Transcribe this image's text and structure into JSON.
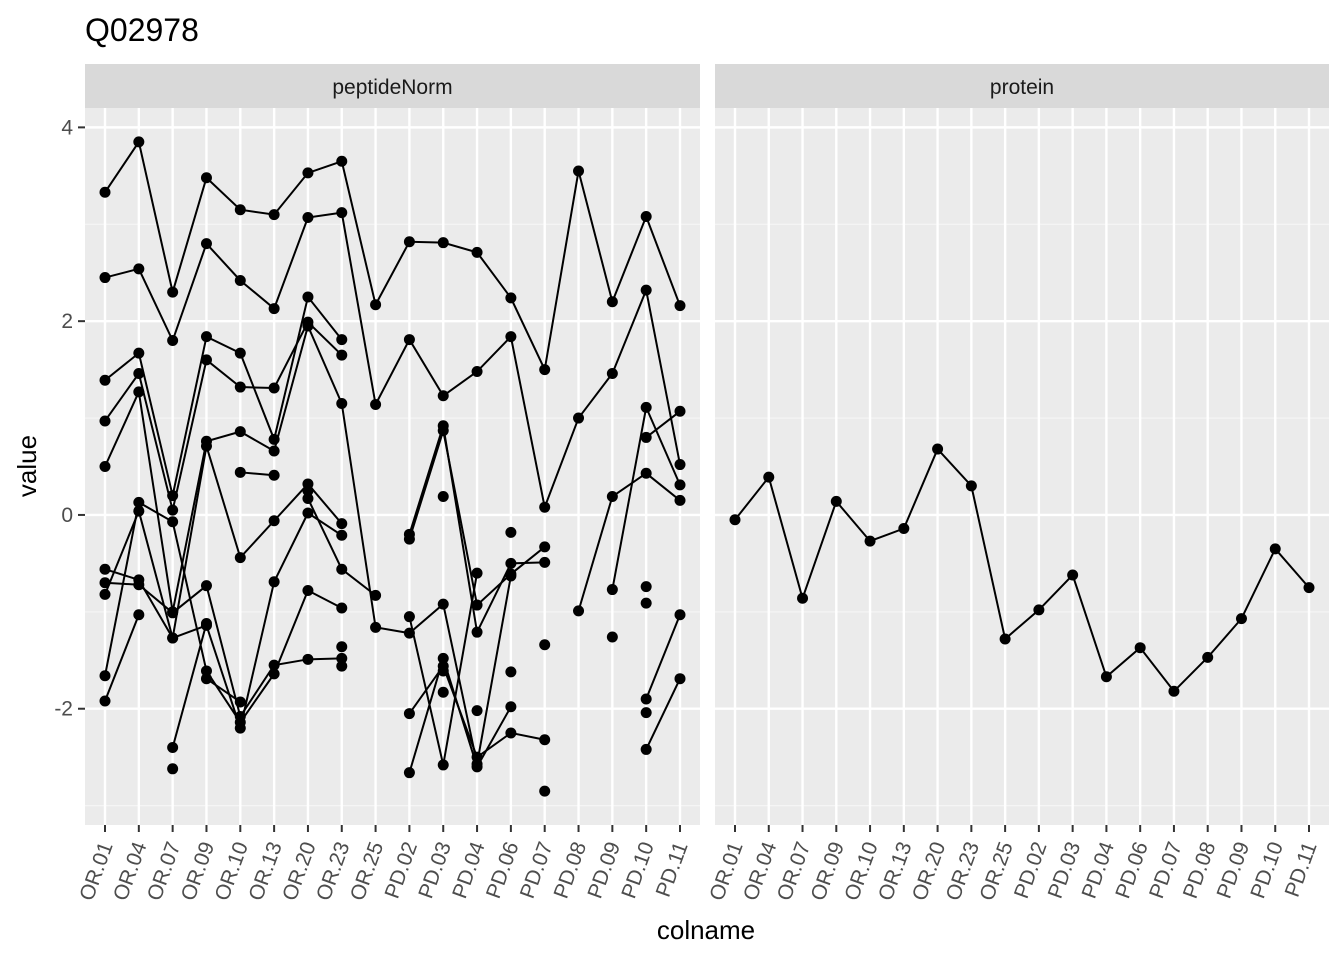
{
  "chart_data": {
    "type": "line",
    "title": "Q02978",
    "xlabel": "colname",
    "ylabel": "value",
    "ylim": [
      -3.2,
      4.2
    ],
    "y_ticks": [
      "-2",
      "0",
      "2",
      "4"
    ],
    "grid": true,
    "legend": "none",
    "categories": [
      "OR.01",
      "OR.04",
      "OR.07",
      "OR.09",
      "OR.10",
      "OR.13",
      "OR.20",
      "OR.23",
      "OR.25",
      "PD.02",
      "PD.03",
      "PD.04",
      "PD.06",
      "PD.07",
      "PD.08",
      "PD.09",
      "PD.10",
      "PD.11"
    ],
    "panels": [
      {
        "strip": "peptideNorm",
        "series": [
          {
            "values": [
              3.33,
              3.85,
              2.3,
              3.48,
              3.15,
              3.1,
              3.53,
              3.65,
              2.17,
              2.82,
              2.81,
              2.71,
              2.24,
              1.5,
              3.55,
              2.2,
              3.08,
              2.16
            ]
          },
          {
            "values": [
              2.45,
              2.54,
              1.8,
              2.8,
              2.42,
              2.13,
              3.07,
              3.12,
              1.14,
              1.81,
              1.23,
              1.48,
              1.84,
              0.08,
              1.0,
              1.46,
              2.32,
              0.52
            ]
          },
          {
            "values": [
              1.39,
              1.67,
              0.2,
              1.84,
              1.67,
              0.78,
              2.25,
              1.81
            ]
          },
          {
            "values": [
              0.97,
              1.46,
              0.05,
              1.6,
              1.32,
              1.31,
              1.99,
              1.65
            ]
          },
          {
            "values": [
              0.5,
              1.27,
              -1.0,
              0.76,
              0.86,
              0.66,
              1.95,
              1.15,
              -1.16,
              -1.22,
              -0.92,
              -2.57,
              -0.63
            ]
          },
          {
            "values": [
              -0.56,
              -0.67,
              -1.27,
              0.71,
              -0.44,
              -0.06,
              0.32,
              -0.09
            ]
          },
          {
            "values": [
              -0.7,
              -0.72,
              -1.01,
              -0.73,
              -2.08,
              -1.55,
              -1.49,
              -1.48
            ]
          },
          {
            "values": [
              -0.82,
              0.04,
              -1.27,
              -1.14,
              -2.2,
              -0.69,
              0.02,
              -0.21
            ]
          },
          {
            "values": [
              -1.66,
              0.13,
              -0.07,
              -1.61,
              -2.14,
              -1.64,
              -0.78,
              -0.96
            ]
          },
          {
            "values": [
              -1.92,
              -1.03,
              null,
              -1.69,
              -1.93,
              null,
              0.17,
              -0.56,
              -0.83
            ]
          },
          {
            "values": [
              null,
              null,
              -2.4,
              -1.12
            ]
          },
          {
            "values": [
              null,
              null,
              -2.62
            ]
          },
          {
            "values": [
              null,
              null,
              null,
              null,
              0.44,
              0.41
            ]
          },
          {
            "values": [
              null,
              null,
              null,
              null,
              null,
              null,
              0.25
            ]
          },
          {
            "values": [
              null,
              null,
              null,
              null,
              null,
              null,
              null,
              -1.36
            ]
          },
          {
            "values": [
              null,
              null,
              null,
              null,
              null,
              null,
              null,
              -1.56
            ]
          },
          {
            "values": [
              null,
              null,
              null,
              null,
              null,
              null,
              null,
              null,
              null,
              -0.2,
              0.92,
              -1.21,
              -0.5,
              -0.49
            ]
          },
          {
            "values": [
              null,
              null,
              null,
              null,
              null,
              null,
              null,
              null,
              null,
              -0.25,
              0.87,
              -0.93,
              -0.61,
              -0.33
            ]
          },
          {
            "values": [
              null,
              null,
              null,
              null,
              null,
              null,
              null,
              null,
              null,
              -1.05,
              -2.58,
              -0.6
            ]
          },
          {
            "values": [
              null,
              null,
              null,
              null,
              null,
              null,
              null,
              null,
              null,
              -2.05,
              -1.56,
              -2.5,
              -2.25,
              -2.32
            ]
          },
          {
            "values": [
              null,
              null,
              null,
              null,
              null,
              null,
              null,
              null,
              null,
              -2.66,
              -1.48,
              -2.6,
              -1.98
            ]
          },
          {
            "values": [
              null,
              null,
              null,
              null,
              null,
              null,
              null,
              null,
              null,
              null,
              0.19
            ]
          },
          {
            "values": [
              null,
              null,
              null,
              null,
              null,
              null,
              null,
              null,
              null,
              null,
              -1.61
            ]
          },
          {
            "values": [
              null,
              null,
              null,
              null,
              null,
              null,
              null,
              null,
              null,
              null,
              -1.83
            ]
          },
          {
            "values": [
              null,
              null,
              null,
              null,
              null,
              null,
              null,
              null,
              null,
              null,
              null,
              -2.02
            ]
          },
          {
            "values": [
              null,
              null,
              null,
              null,
              null,
              null,
              null,
              null,
              null,
              null,
              null,
              null,
              -0.18
            ]
          },
          {
            "values": [
              null,
              null,
              null,
              null,
              null,
              null,
              null,
              null,
              null,
              null,
              null,
              null,
              -1.62
            ]
          },
          {
            "values": [
              null,
              null,
              null,
              null,
              null,
              null,
              null,
              null,
              null,
              null,
              null,
              null,
              null,
              -1.34
            ]
          },
          {
            "values": [
              null,
              null,
              null,
              null,
              null,
              null,
              null,
              null,
              null,
              null,
              null,
              null,
              null,
              -2.85
            ]
          },
          {
            "values": [
              null,
              null,
              null,
              null,
              null,
              null,
              null,
              null,
              null,
              null,
              null,
              null,
              null,
              null,
              -0.99,
              0.19,
              0.43,
              0.15
            ]
          },
          {
            "values": [
              null,
              null,
              null,
              null,
              null,
              null,
              null,
              null,
              null,
              null,
              null,
              null,
              null,
              null,
              null,
              -0.77,
              1.11,
              0.31
            ]
          },
          {
            "values": [
              null,
              null,
              null,
              null,
              null,
              null,
              null,
              null,
              null,
              null,
              null,
              null,
              null,
              null,
              null,
              -1.26
            ]
          },
          {
            "values": [
              null,
              null,
              null,
              null,
              null,
              null,
              null,
              null,
              null,
              null,
              null,
              null,
              null,
              null,
              null,
              null,
              0.8,
              1.07
            ]
          },
          {
            "values": [
              null,
              null,
              null,
              null,
              null,
              null,
              null,
              null,
              null,
              null,
              null,
              null,
              null,
              null,
              null,
              null,
              -2.42,
              -1.69
            ]
          },
          {
            "values": [
              null,
              null,
              null,
              null,
              null,
              null,
              null,
              null,
              null,
              null,
              null,
              null,
              null,
              null,
              null,
              null,
              -1.9,
              -1.03
            ]
          },
          {
            "values": [
              null,
              null,
              null,
              null,
              null,
              null,
              null,
              null,
              null,
              null,
              null,
              null,
              null,
              null,
              null,
              null,
              -0.74
            ]
          },
          {
            "values": [
              null,
              null,
              null,
              null,
              null,
              null,
              null,
              null,
              null,
              null,
              null,
              null,
              null,
              null,
              null,
              null,
              -0.91
            ]
          },
          {
            "values": [
              null,
              null,
              null,
              null,
              null,
              null,
              null,
              null,
              null,
              null,
              null,
              null,
              null,
              null,
              null,
              null,
              -2.04
            ]
          }
        ]
      },
      {
        "strip": "protein",
        "series": [
          {
            "values": [
              -0.05,
              0.39,
              -0.86,
              0.14,
              -0.27,
              -0.14,
              0.68,
              0.3,
              -1.28,
              -0.98,
              -0.62,
              -1.67,
              -1.37,
              -1.82,
              -1.47,
              -1.07,
              -0.35,
              -0.75
            ]
          }
        ]
      }
    ]
  }
}
